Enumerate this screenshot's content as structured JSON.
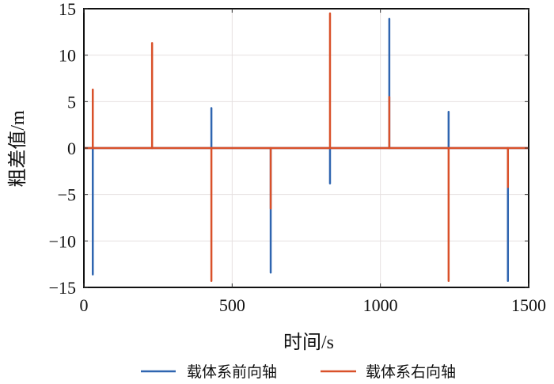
{
  "chart_data": {
    "type": "line",
    "title": "",
    "xlabel": "时间/s",
    "ylabel": "粗差值/m",
    "xlim": [
      0,
      1500
    ],
    "ylim": [
      -15,
      15
    ],
    "xticks": [
      0,
      500,
      1000,
      1500
    ],
    "xtick_labels": [
      "0",
      "500",
      "1000",
      "1500"
    ],
    "yticks": [
      -15,
      -10,
      -5,
      0,
      5,
      10,
      15
    ],
    "ytick_labels": [
      "−15",
      "−10",
      "−5",
      "0",
      "5",
      "10",
      "15"
    ],
    "grid": true,
    "legend_position": "bottom",
    "spike_times": [
      30,
      230,
      430,
      630,
      830,
      1030,
      1230,
      1430
    ],
    "series": [
      {
        "name": "载体系前向轴",
        "color": "#2f65b0",
        "values": [
          -13.6,
          0,
          4.3,
          -13.4,
          -3.8,
          13.9,
          3.9,
          -14.3
        ]
      },
      {
        "name": "载体系右向轴",
        "color": "#d9512a",
        "values": [
          6.3,
          11.3,
          -14.3,
          -6.5,
          14.5,
          5.5,
          -14.3,
          -4.2
        ]
      }
    ]
  }
}
